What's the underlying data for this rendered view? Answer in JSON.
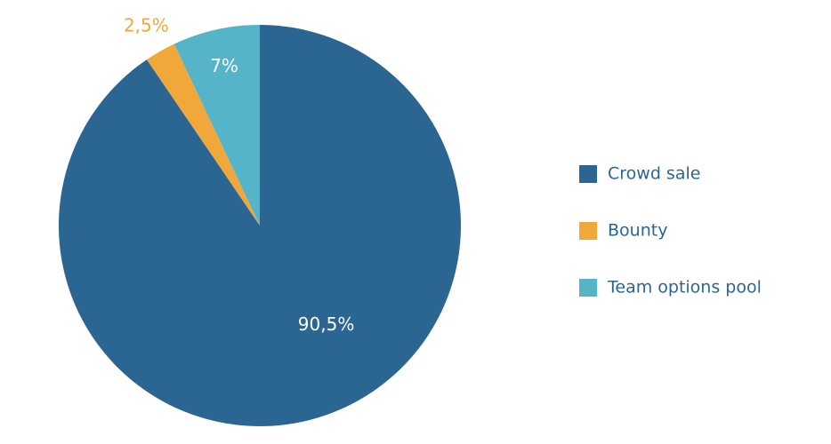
{
  "chart_data": {
    "type": "pie",
    "categories": [
      "Crowd sale",
      "Bounty",
      "Team options pool"
    ],
    "values": [
      90.5,
      2.5,
      7
    ],
    "value_labels": [
      "90,5%",
      "2,5%",
      "7%"
    ],
    "colors": [
      "#2b6692",
      "#f0a83a",
      "#55b4c8"
    ],
    "legend": "right"
  }
}
